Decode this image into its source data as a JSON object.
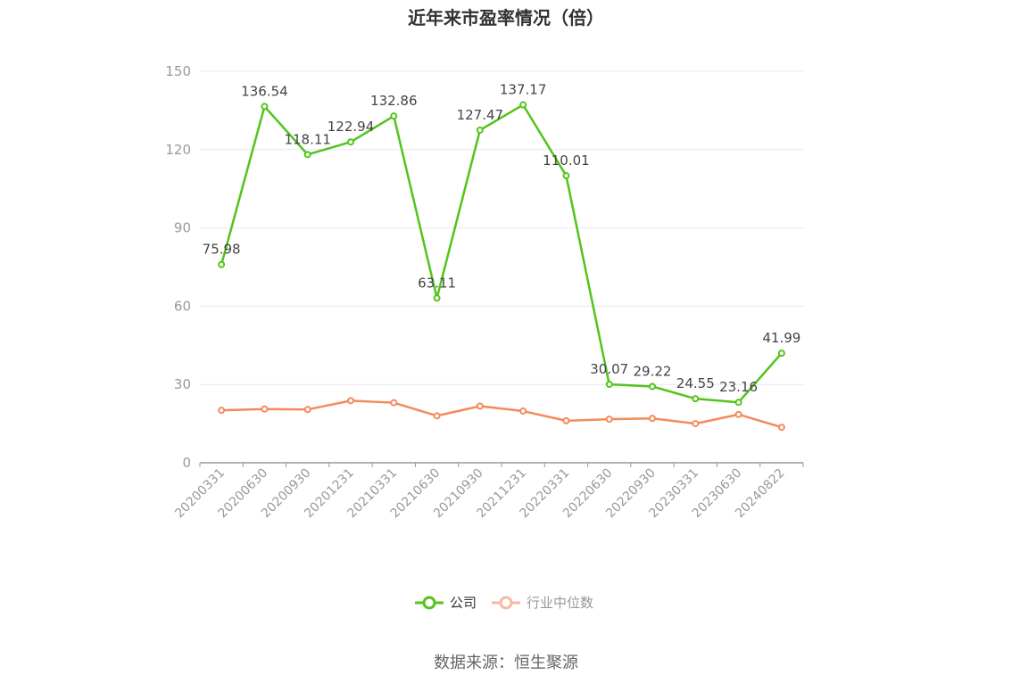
{
  "title": "近年来市盈率情况（倍）",
  "source": "数据来源：恒生聚源",
  "colors": {
    "company": "#52c41a",
    "industry": "#f5895c",
    "industry_legend": "#f8b9a0",
    "grid": "#e6e9f0",
    "axis": "#999999"
  },
  "chart_data": {
    "type": "line",
    "categories": [
      "20200331",
      "20200630",
      "20200930",
      "20201231",
      "20210331",
      "20210630",
      "20210930",
      "20211231",
      "20220331",
      "20220630",
      "20220930",
      "20230331",
      "20230630",
      "20240822"
    ],
    "series": [
      {
        "name": "公司",
        "values": [
          75.98,
          136.54,
          118.11,
          122.94,
          132.86,
          63.11,
          127.47,
          137.17,
          110.01,
          30.07,
          29.22,
          24.55,
          23.16,
          41.99
        ],
        "labels": true
      },
      {
        "name": "行业中位数",
        "values": [
          20.1,
          20.6,
          20.4,
          23.8,
          23.0,
          18.0,
          21.7,
          19.8,
          16.1,
          16.7,
          17.0,
          15.0,
          18.5,
          13.6
        ],
        "labels": false
      }
    ],
    "ylim": [
      0,
      150
    ],
    "yticks": [
      0,
      30,
      60,
      90,
      120,
      150
    ],
    "grid": true,
    "legend": "bottom"
  }
}
